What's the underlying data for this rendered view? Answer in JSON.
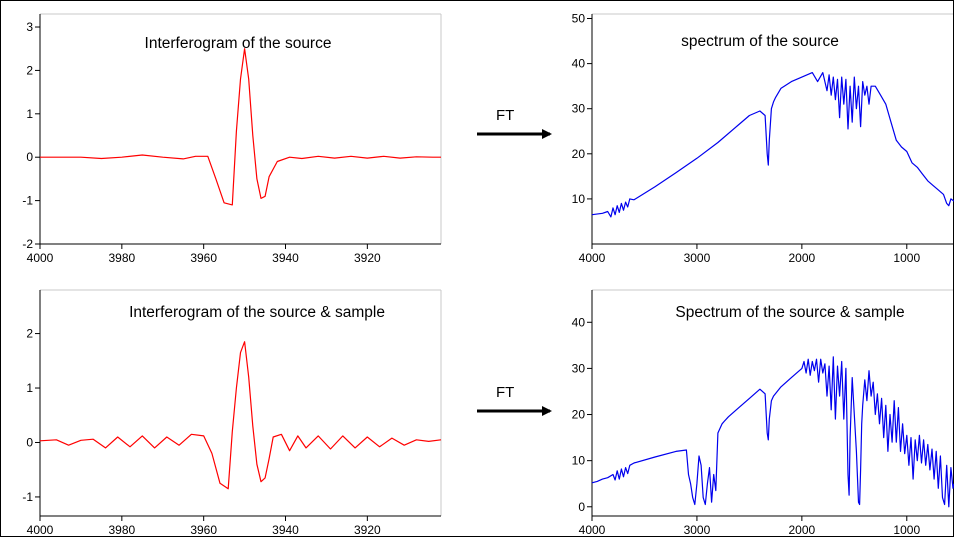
{
  "arrows": [
    {
      "label": "FT"
    },
    {
      "label": "FT"
    }
  ],
  "chart_data": [
    {
      "type": "line",
      "title": "Interferogram of the source",
      "xlabel": "",
      "ylabel": "",
      "xlim": [
        4000,
        3902
      ],
      "ylim": [
        -2,
        3.3
      ],
      "xticks": [
        "4000",
        "3980",
        "3960",
        "3940",
        "3920"
      ],
      "yticks": [
        "-2",
        "-1",
        "0",
        "1",
        "2",
        "3"
      ],
      "color": "#ff0000",
      "series": [
        {
          "x": [
            4000,
            3990,
            3985,
            3980,
            3975,
            3970,
            3965,
            3962,
            3959,
            3957,
            3955,
            3953,
            3952,
            3951,
            3950,
            3949,
            3948,
            3947,
            3946,
            3945,
            3944,
            3942,
            3939,
            3936,
            3932,
            3928,
            3924,
            3920,
            3916,
            3912,
            3908,
            3904,
            3902
          ],
          "y": [
            0,
            0,
            -0.03,
            0,
            0.05,
            0,
            -0.04,
            0.02,
            0.02,
            -0.5,
            -1.05,
            -1.1,
            0.6,
            1.8,
            2.5,
            1.8,
            0.5,
            -0.5,
            -0.95,
            -0.9,
            -0.45,
            -0.1,
            0,
            -0.03,
            0.02,
            -0.02,
            0.02,
            -0.02,
            0.02,
            -0.02,
            0.01,
            0,
            0
          ]
        }
      ]
    },
    {
      "type": "line",
      "title": "spectrum of the source",
      "xlabel": "",
      "ylabel": "",
      "xlim": [
        4000,
        550
      ],
      "ylim": [
        0,
        51
      ],
      "xticks": [
        "4000",
        "3000",
        "2000",
        "1000"
      ],
      "yticks": [
        "10",
        "20",
        "30",
        "40",
        "50"
      ],
      "color": "#0000ee",
      "series": [
        {
          "x": [
            4000,
            3900,
            3850,
            3820,
            3800,
            3780,
            3760,
            3740,
            3720,
            3700,
            3680,
            3660,
            3640,
            3600,
            3400,
            3200,
            3000,
            2800,
            2600,
            2500,
            2400,
            2350,
            2330,
            2320,
            2310,
            2290,
            2270,
            2250,
            2200,
            2100,
            2000,
            1900,
            1850,
            1800,
            1760,
            1740,
            1720,
            1700,
            1680,
            1660,
            1640,
            1620,
            1600,
            1580,
            1560,
            1540,
            1520,
            1500,
            1480,
            1460,
            1440,
            1420,
            1400,
            1380,
            1360,
            1340,
            1300,
            1250,
            1200,
            1150,
            1100,
            1050,
            1000,
            950,
            900,
            850,
            800,
            750,
            700,
            650,
            620,
            600,
            580,
            550
          ],
          "y": [
            6.5,
            6.8,
            7.2,
            6.0,
            8.0,
            6.5,
            8.5,
            7.0,
            9.0,
            7.5,
            9.3,
            8.2,
            10.0,
            9.8,
            12.7,
            15.8,
            19,
            22.5,
            26.5,
            28.5,
            29.5,
            28.5,
            20,
            17.5,
            23,
            30,
            31.5,
            32.5,
            34.5,
            36,
            37,
            38,
            36,
            38,
            34,
            37.5,
            33,
            37,
            32,
            36.5,
            28,
            37,
            31,
            36.5,
            25.5,
            35,
            27,
            37,
            30,
            35,
            26,
            36,
            33,
            35,
            31,
            35,
            35,
            33,
            31,
            27,
            23,
            21.5,
            20.5,
            18,
            17,
            15.5,
            14,
            13,
            12,
            11,
            9,
            8.5,
            10,
            9.5
          ]
        }
      ]
    },
    {
      "type": "line",
      "title": "Interferogram of the source & sample",
      "xlabel": "",
      "ylabel": "",
      "xlim": [
        4000,
        3902
      ],
      "ylim": [
        -1.35,
        2.8
      ],
      "xticks": [
        "4000",
        "3980",
        "3960",
        "3940",
        "3920"
      ],
      "yticks": [
        "-1",
        "0",
        "1",
        "2"
      ],
      "color": "#ff0000",
      "series": [
        {
          "x": [
            4000,
            3996,
            3993,
            3990,
            3987,
            3984,
            3981,
            3978,
            3975,
            3972,
            3969,
            3966,
            3963,
            3960,
            3958,
            3956,
            3954,
            3953,
            3952,
            3951,
            3950,
            3949,
            3948,
            3947,
            3946,
            3945,
            3944,
            3943,
            3941,
            3939,
            3937,
            3935,
            3932,
            3929,
            3926,
            3923,
            3920,
            3917,
            3914,
            3911,
            3908,
            3905,
            3902
          ],
          "y": [
            0.03,
            0.05,
            -0.05,
            0.04,
            0.06,
            -0.1,
            0.1,
            -0.08,
            0.12,
            -0.1,
            0.1,
            -0.05,
            0.15,
            0.12,
            -0.2,
            -0.75,
            -0.85,
            0.2,
            1.0,
            1.65,
            1.85,
            1.2,
            0.3,
            -0.4,
            -0.72,
            -0.65,
            -0.3,
            0.1,
            0.15,
            -0.15,
            0.12,
            -0.1,
            0.12,
            -0.12,
            0.12,
            -0.1,
            0.1,
            -0.08,
            0.08,
            -0.05,
            0.05,
            0.02,
            0.05
          ]
        }
      ]
    },
    {
      "type": "line",
      "title": "Spectrum of  the source & sample",
      "xlabel": "",
      "ylabel": "",
      "xlim": [
        4000,
        550
      ],
      "ylim": [
        -2,
        47
      ],
      "xticks": [
        "4000",
        "3000",
        "2000",
        "1000"
      ],
      "yticks": [
        "0",
        "10",
        "20",
        "30",
        "40"
      ],
      "color": "#0000ee",
      "series": [
        {
          "x": [
            4000,
            3950,
            3900,
            3850,
            3800,
            3780,
            3760,
            3740,
            3720,
            3700,
            3680,
            3660,
            3640,
            3600,
            3400,
            3200,
            3100,
            3080,
            3060,
            3040,
            3020,
            3000,
            2980,
            2960,
            2940,
            2920,
            2900,
            2880,
            2860,
            2840,
            2820,
            2800,
            2780,
            2760,
            2740,
            2700,
            2600,
            2500,
            2400,
            2350,
            2330,
            2320,
            2310,
            2290,
            2270,
            2200,
            2100,
            2000,
            1980,
            1960,
            1940,
            1920,
            1900,
            1880,
            1860,
            1840,
            1820,
            1800,
            1780,
            1760,
            1740,
            1720,
            1700,
            1680,
            1660,
            1640,
            1620,
            1600,
            1580,
            1560,
            1550,
            1540,
            1520,
            1500,
            1480,
            1460,
            1450,
            1440,
            1430,
            1420,
            1400,
            1380,
            1360,
            1340,
            1320,
            1300,
            1280,
            1260,
            1240,
            1220,
            1200,
            1180,
            1160,
            1140,
            1120,
            1100,
            1080,
            1060,
            1040,
            1020,
            1000,
            980,
            960,
            940,
            920,
            900,
            880,
            860,
            840,
            820,
            800,
            780,
            760,
            740,
            720,
            700,
            680,
            660,
            640,
            620,
            600,
            580,
            560,
            550
          ],
          "y": [
            5.2,
            5.5,
            6.0,
            6.3,
            7.0,
            5.8,
            7.8,
            6.0,
            8.2,
            6.5,
            8.5,
            7.2,
            9.0,
            9.5,
            10.8,
            12.0,
            12.3,
            7.0,
            5.0,
            2.0,
            0.5,
            5.0,
            11.0,
            9.0,
            2.0,
            0.5,
            5.0,
            8.5,
            1.0,
            7.0,
            3.5,
            16.0,
            17.0,
            18.0,
            18.5,
            19.5,
            21.5,
            23.5,
            25.5,
            24.5,
            16.0,
            14.5,
            19.0,
            23.0,
            24.0,
            26.0,
            28.0,
            30.0,
            31.5,
            29.0,
            32.0,
            28.5,
            31.5,
            29.5,
            32.0,
            27.0,
            32.0,
            29.0,
            31.0,
            24.0,
            30.5,
            21.0,
            32.5,
            19.0,
            30.5,
            24.0,
            31.5,
            19.0,
            30.0,
            7.0,
            2.5,
            15.0,
            28.0,
            20.0,
            12.0,
            1.0,
            0.5,
            8.0,
            18.0,
            22.0,
            27.5,
            23.0,
            29.5,
            24.0,
            27.0,
            20.0,
            24.5,
            18.0,
            23.5,
            15.0,
            22.0,
            12.0,
            20.0,
            14.0,
            23.0,
            14.0,
            21.5,
            12.0,
            18.0,
            11.5,
            15.5,
            9.0,
            15.0,
            6.0,
            14.5,
            10.0,
            15.5,
            9.5,
            14.5,
            9.0,
            13.5,
            8.0,
            12.5,
            6.0,
            12.0,
            4.0,
            11.0,
            2.0,
            0.5,
            9.0,
            0.0,
            8.5,
            4.0,
            5.0
          ]
        }
      ]
    }
  ]
}
